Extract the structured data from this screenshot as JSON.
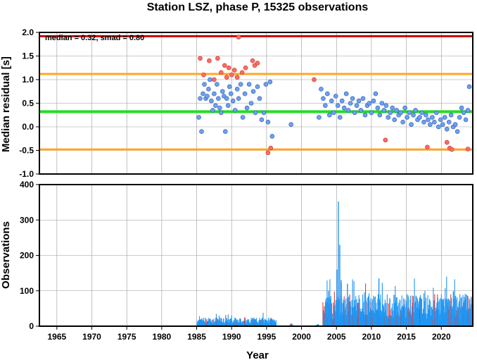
{
  "chart_data": [
    {
      "type": "scatter",
      "title": "Station LSZ, phase P, 15325 observations",
      "xlabel": "",
      "ylabel": "Median residual [s]",
      "annotation": "median = 0.32, smad = 0.80",
      "xlim": [
        1962.5,
        2024.5
      ],
      "ylim": [
        -1.0,
        2.0
      ],
      "xticks": [
        "1965",
        "1970",
        "1975",
        "1980",
        "1985",
        "1990",
        "1995",
        "2000",
        "2005",
        "2010",
        "2015",
        "2020"
      ],
      "yticks": [
        "2.0",
        "1.5",
        "1.0",
        "0.5",
        "0.0",
        "-0.5",
        "-1.0"
      ],
      "grid": true,
      "reference_lines": [
        {
          "name": "median",
          "y": 0.32,
          "color": "#22dd22"
        },
        {
          "name": "median + smad",
          "y": 1.12,
          "color": "#ffa726"
        },
        {
          "name": "median - smad",
          "y": -0.48,
          "color": "#ffa726"
        },
        {
          "name": "upper limit",
          "y": 1.92,
          "color": "#cc0000"
        }
      ],
      "colors": {
        "inlier": "#6f9ff0",
        "outlier": "#ff6b60"
      },
      "series": [
        {
          "category": "inlier",
          "x": [
            1985.3,
            1985.5,
            1985.7,
            1985.9,
            1986.1,
            1986.3,
            1986.5,
            1986.7,
            1986.9,
            1987.1,
            1987.3,
            1987.5,
            1987.7,
            1987.9,
            1988.1,
            1988.3,
            1988.5,
            1988.7,
            1988.9,
            1989.1,
            1989.3,
            1989.5,
            1989.7,
            1989.9,
            1990.2,
            1990.5,
            1990.8,
            1991.0,
            1991.3,
            1991.6,
            1991.9,
            1992.2,
            1992.5,
            1992.8,
            1993.1,
            1993.4,
            1993.7,
            1994.0,
            1994.3,
            1994.6,
            1994.9,
            1995.2,
            1995.5,
            1995.8,
            1998.5,
            2002.5,
            2002.8,
            2003.1,
            2003.4,
            2003.7,
            2004.0,
            2004.3,
            2004.6,
            2004.9,
            2005.2,
            2005.5,
            2005.8,
            2006.1,
            2006.4,
            2006.7,
            2007.0,
            2007.3,
            2007.6,
            2007.9,
            2008.2,
            2008.5,
            2008.8,
            2009.1,
            2009.4,
            2009.7,
            2010.0,
            2010.3,
            2010.6,
            2010.9,
            2011.2,
            2011.5,
            2011.8,
            2012.1,
            2012.4,
            2012.7,
            2013.0,
            2013.3,
            2013.6,
            2013.9,
            2014.2,
            2014.5,
            2014.8,
            2015.1,
            2015.4,
            2015.7,
            2016.0,
            2016.3,
            2016.6,
            2016.9,
            2017.2,
            2017.5,
            2017.8,
            2018.1,
            2018.4,
            2018.7,
            2019.0,
            2019.3,
            2019.6,
            2019.9,
            2020.2,
            2020.5,
            2020.8,
            2021.1,
            2021.4,
            2021.7,
            2022.0,
            2022.3,
            2022.6,
            2022.9,
            2023.2,
            2023.5,
            2023.8,
            2024.0
          ],
          "y": [
            0.2,
            0.6,
            -0.1,
            0.7,
            0.9,
            0.6,
            0.65,
            0.8,
            1.0,
            0.55,
            0.35,
            0.7,
            0.45,
            0.9,
            0.6,
            0.4,
            0.3,
            0.75,
            0.65,
            -0.1,
            0.6,
            0.45,
            0.85,
            0.7,
            0.55,
            0.35,
            0.8,
            0.6,
            0.9,
            0.2,
            0.7,
            0.4,
            0.9,
            0.5,
            0.75,
            0.3,
            0.85,
            0.6,
            0.15,
            0.3,
            0.9,
            0.1,
            0.95,
            -0.2,
            0.05,
            0.2,
            0.8,
            0.6,
            0.45,
            0.7,
            0.25,
            0.55,
            0.3,
            0.65,
            0.45,
            0.2,
            0.55,
            0.4,
            0.7,
            0.35,
            0.5,
            0.6,
            0.3,
            0.45,
            0.55,
            0.35,
            0.6,
            0.25,
            0.45,
            0.5,
            0.3,
            0.55,
            0.7,
            0.4,
            0.25,
            0.5,
            0.35,
            0.45,
            0.2,
            0.3,
            0.4,
            0.15,
            0.35,
            0.25,
            0.3,
            0.1,
            0.4,
            0.2,
            0.3,
            0.05,
            0.25,
            0.35,
            0.15,
            0.2,
            0.3,
            0.1,
            0.25,
            0.15,
            0.05,
            0.2,
            0.1,
            0.3,
            0.0,
            0.15,
            0.05,
            0.2,
            -0.05,
            0.1,
            0.25,
            0.0,
            0.05,
            -0.1,
            0.2,
            0.4,
            0.3,
            0.15,
            0.35,
            0.85
          ]
        },
        {
          "category": "outlier",
          "x": [
            1985.5,
            1986.0,
            1986.8,
            1987.5,
            1988.0,
            1988.5,
            1989.0,
            1989.3,
            1989.6,
            1990.0,
            1990.4,
            1990.8,
            1991.0,
            1991.5,
            1992.0,
            1993.0,
            1993.3,
            1993.7,
            1995.2,
            1995.6,
            2001.8,
            2012.0,
            2018.0,
            2020.8,
            2021.2,
            2021.5,
            2023.8
          ],
          "y": [
            1.45,
            1.1,
            1.4,
            1.0,
            1.45,
            1.15,
            1.3,
            1.05,
            1.25,
            1.1,
            1.2,
            1.05,
            1.9,
            1.15,
            1.25,
            1.4,
            1.3,
            1.35,
            -0.55,
            -0.45,
            1.0,
            -0.28,
            -0.43,
            -0.33,
            -0.45,
            -0.48,
            -0.47
          ]
        }
      ]
    },
    {
      "type": "bar",
      "title": "",
      "xlabel": "Year",
      "ylabel": "Observations",
      "xlim": [
        1962.5,
        2024.5
      ],
      "ylim": [
        0,
        400
      ],
      "xticks": [
        "1965",
        "1970",
        "1975",
        "1980",
        "1985",
        "1990",
        "1995",
        "2000",
        "2005",
        "2010",
        "2015",
        "2020"
      ],
      "yticks": [
        "400",
        "300",
        "200",
        "100",
        "0"
      ],
      "grid": true,
      "colors": {
        "bar": "#2196f3",
        "outlier_bar": "#e53935"
      },
      "segments": [
        {
          "start": 1985.0,
          "end": 1996.3,
          "typical": 15,
          "max": 38
        },
        {
          "start": 1998.3,
          "end": 1998.7,
          "typical": 6,
          "max": 8
        },
        {
          "start": 2002.0,
          "end": 2002.4,
          "typical": 4,
          "max": 6
        },
        {
          "start": 2003.0,
          "end": 2024.5,
          "typical": 55,
          "max": 140
        }
      ],
      "peaks": [
        {
          "x": 2005.2,
          "value": 352
        },
        {
          "x": 2005.4,
          "value": 230
        },
        {
          "x": 2005.0,
          "value": 160
        },
        {
          "x": 2005.6,
          "value": 130
        },
        {
          "x": 2003.8,
          "value": 100
        },
        {
          "x": 2006.5,
          "value": 120
        },
        {
          "x": 2011.0,
          "value": 135
        }
      ]
    }
  ]
}
